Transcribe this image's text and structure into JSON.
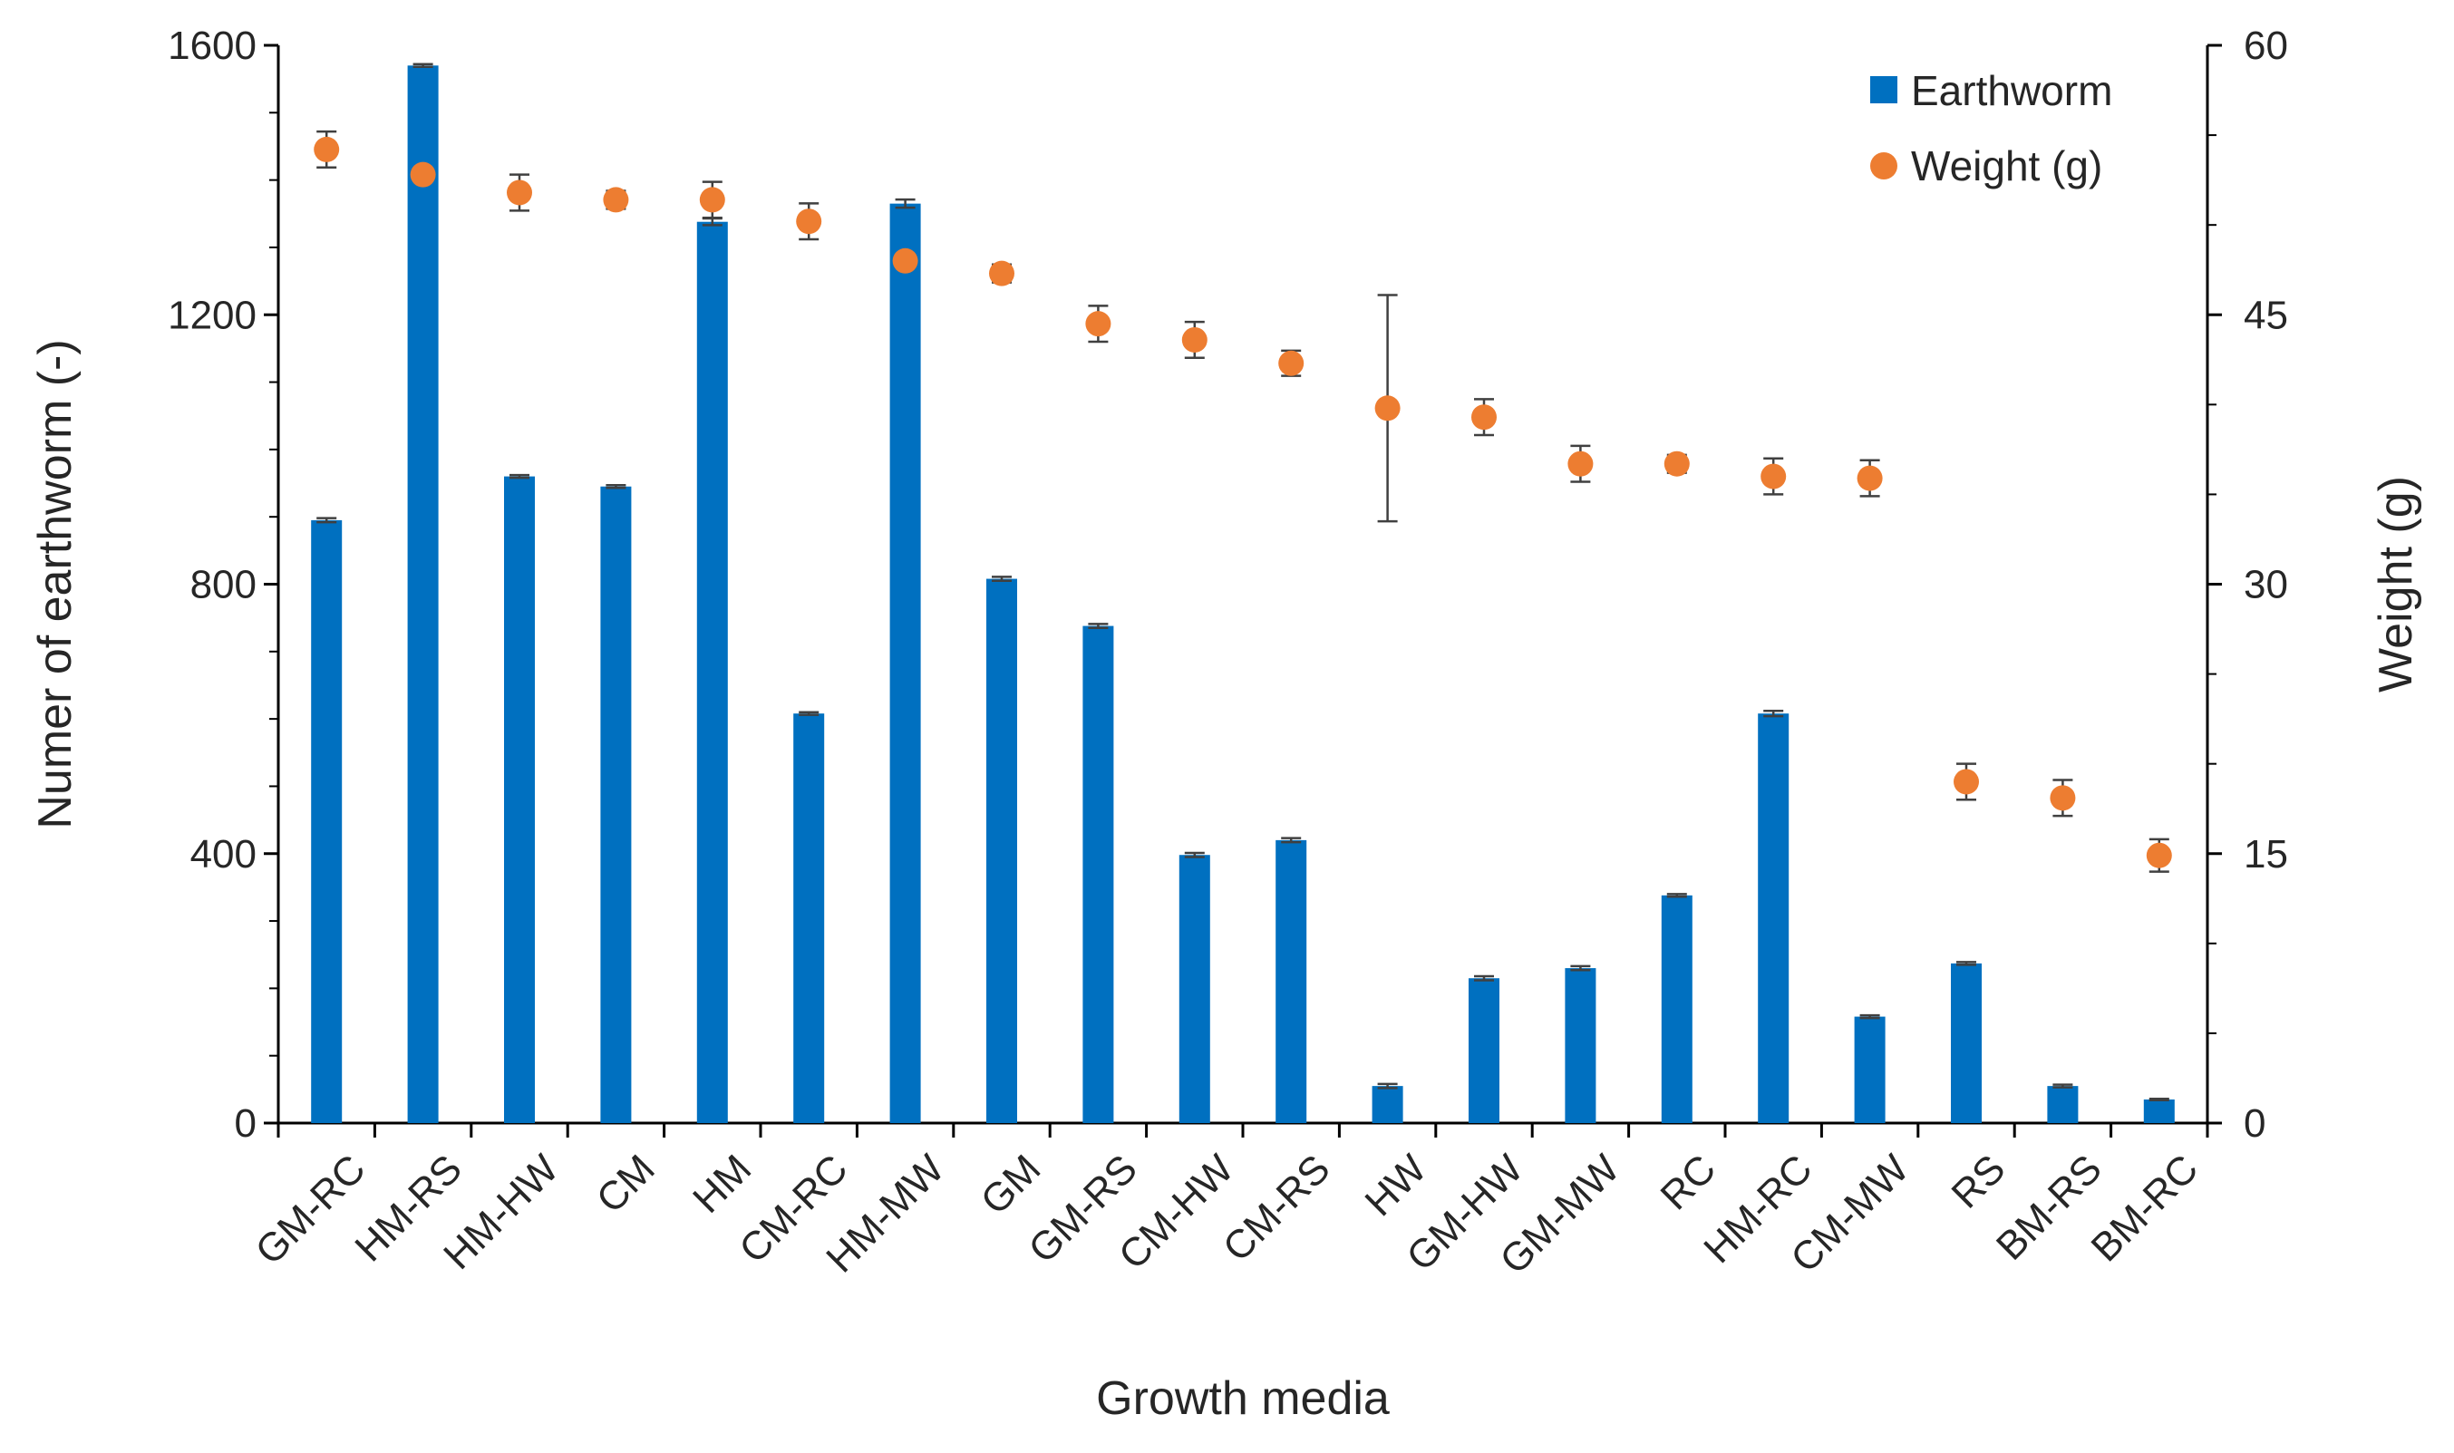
{
  "chart_data": {
    "type": "bar+scatter",
    "xlabel": "Growth media",
    "ylabel_left": "Numer of earthworm (-)",
    "ylabel_right": "Weight (g)",
    "ylim_left": [
      0,
      1600
    ],
    "ylim_right": [
      0,
      60
    ],
    "yticks_left": [
      "0",
      "400",
      "800",
      "1200",
      "1600"
    ],
    "yticks_right": [
      "0",
      "15",
      "30",
      "45",
      "60"
    ],
    "categories": [
      "GM-RC",
      "HM-RS",
      "HM-HW",
      "CM",
      "HM",
      "CM-RC",
      "HM-MW",
      "GM",
      "GM-RS",
      "CM-HW",
      "CM-RS",
      "HW",
      "GM-HW",
      "GM-MW",
      "RC",
      "HM-RC",
      "CM-MW",
      "RS",
      "BM-RS",
      "BM-RC"
    ],
    "series": [
      {
        "name": "Earthworm",
        "type": "bar",
        "axis": "left",
        "color": "#0070C0",
        "values": [
          895,
          1570,
          960,
          945,
          1338,
          608,
          1365,
          808,
          738,
          398,
          420,
          55,
          215,
          230,
          338,
          608,
          158,
          237,
          55,
          35
        ],
        "errors": [
          3,
          2,
          2,
          2,
          5,
          2,
          6,
          3,
          3,
          3,
          3,
          3,
          3,
          3,
          2,
          4,
          2,
          2,
          2,
          1
        ]
      },
      {
        "name": "Weight (g)",
        "type": "scatter",
        "axis": "right",
        "color": "#ED7D31",
        "values": [
          54.2,
          52.8,
          51.8,
          51.4,
          51.4,
          50.2,
          48.0,
          47.3,
          44.5,
          43.6,
          42.3,
          39.8,
          39.3,
          36.7,
          36.7,
          36.0,
          35.9,
          19.0,
          18.1,
          14.9
        ],
        "errors": [
          1.0,
          0.3,
          1.0,
          0.5,
          1.0,
          1.0,
          0.3,
          0.5,
          1.0,
          1.0,
          0.7,
          6.3,
          1.0,
          1.0,
          0.5,
          1.0,
          1.0,
          1.0,
          1.0,
          0.9
        ]
      }
    ],
    "legend": "top-right"
  }
}
